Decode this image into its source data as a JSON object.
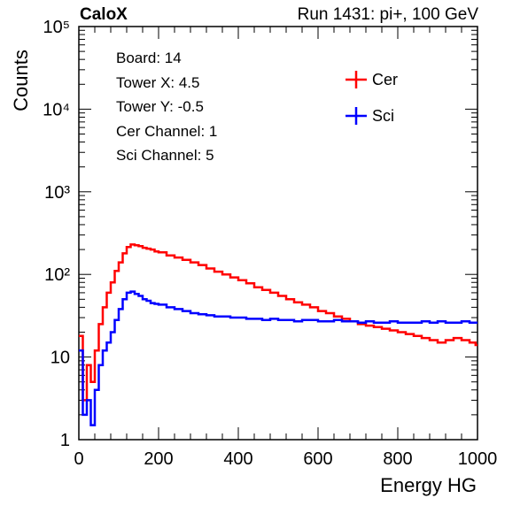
{
  "header": {
    "left": "CaloX",
    "right": "Run 1431: pi+, 100 GeV"
  },
  "info_lines": [
    "Board: 14",
    "Tower X: 4.5",
    "Tower Y: -0.5",
    "Cer Channel: 1",
    "Sci Channel: 5"
  ],
  "colors": {
    "cer": "#ff0000",
    "sci": "#0000ff"
  },
  "chart_data": {
    "type": "line",
    "style": "step histogram",
    "xlabel": "Energy HG",
    "ylabel": "Counts",
    "xlim": [
      0,
      1000
    ],
    "ylim": [
      1,
      100000
    ],
    "yscale": "log",
    "x_ticks": [
      "0",
      "200",
      "400",
      "600",
      "800",
      "1000"
    ],
    "y_ticks": [
      "1",
      "10",
      "10²",
      "10³",
      "10⁴",
      "10⁵"
    ],
    "grid": false,
    "legend_placement": "top-right",
    "series": [
      {
        "name": "Cer",
        "color": "#ff0000",
        "x": [
          0,
          10,
          20,
          30,
          40,
          50,
          60,
          70,
          80,
          90,
          100,
          110,
          120,
          130,
          140,
          150,
          160,
          170,
          180,
          190,
          200,
          220,
          240,
          260,
          280,
          300,
          320,
          340,
          360,
          380,
          400,
          420,
          440,
          460,
          480,
          500,
          520,
          540,
          560,
          580,
          600,
          620,
          640,
          660,
          680,
          700,
          720,
          740,
          760,
          780,
          800,
          820,
          840,
          860,
          880,
          900,
          920,
          940,
          960,
          980,
          995
        ],
        "y": [
          18,
          3,
          8,
          5,
          12,
          25,
          40,
          60,
          80,
          110,
          140,
          180,
          215,
          230,
          225,
          220,
          210,
          205,
          200,
          190,
          185,
          170,
          160,
          150,
          140,
          130,
          118,
          108,
          100,
          92,
          85,
          78,
          70,
          65,
          60,
          55,
          50,
          46,
          43,
          40,
          36,
          34,
          31,
          29,
          27,
          25,
          24,
          23,
          22,
          21,
          20,
          19,
          18,
          17,
          16,
          15,
          16,
          17,
          16,
          15,
          14
        ]
      },
      {
        "name": "Sci",
        "color": "#0000ff",
        "x": [
          0,
          10,
          20,
          30,
          40,
          50,
          60,
          70,
          80,
          90,
          100,
          110,
          120,
          130,
          140,
          150,
          160,
          170,
          180,
          190,
          200,
          220,
          240,
          260,
          280,
          300,
          320,
          340,
          360,
          380,
          400,
          420,
          440,
          460,
          480,
          500,
          520,
          540,
          560,
          580,
          600,
          620,
          640,
          660,
          680,
          700,
          720,
          740,
          760,
          780,
          800,
          820,
          840,
          860,
          880,
          900,
          920,
          940,
          960,
          980,
          995
        ],
        "y": [
          12,
          2,
          3,
          1.5,
          4,
          8,
          12,
          15,
          20,
          28,
          38,
          50,
          60,
          62,
          58,
          55,
          50,
          48,
          45,
          44,
          43,
          40,
          38,
          36,
          34,
          33,
          32,
          31,
          31,
          30,
          30,
          29,
          29,
          28,
          29,
          28,
          28,
          27,
          28,
          28,
          27,
          27,
          28,
          27,
          27,
          26,
          27,
          26,
          26,
          27,
          26,
          26,
          26,
          27,
          26,
          27,
          26,
          26,
          27,
          26,
          26
        ]
      }
    ]
  }
}
